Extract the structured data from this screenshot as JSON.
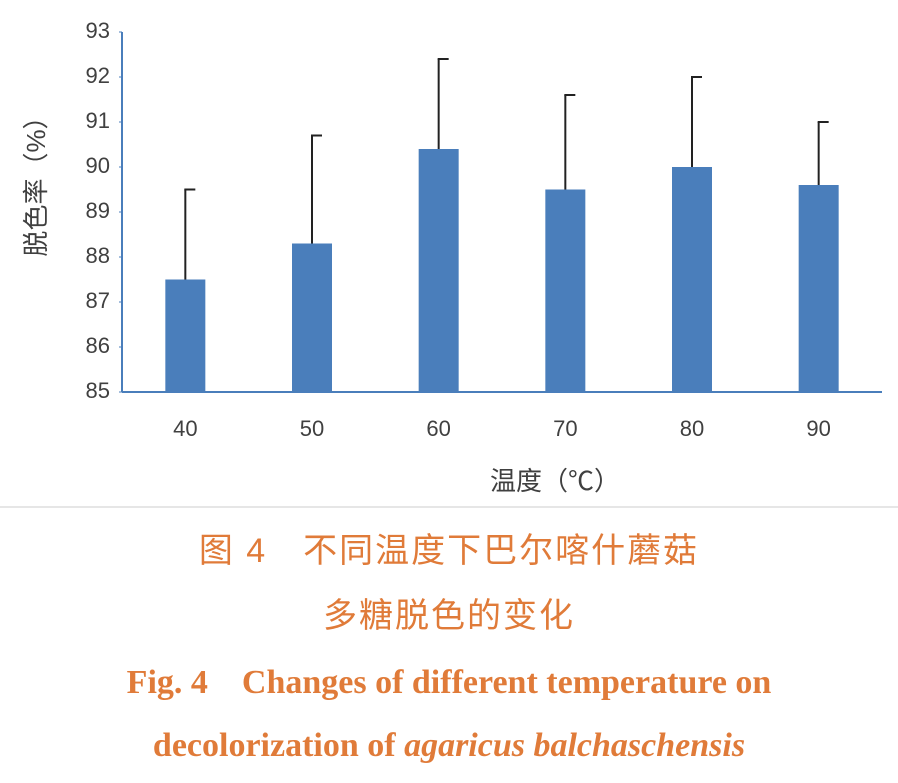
{
  "chart_data": {
    "type": "bar",
    "categories": [
      "40",
      "50",
      "60",
      "70",
      "80",
      "90"
    ],
    "values": [
      87.5,
      88.3,
      90.4,
      89.5,
      90.0,
      89.6
    ],
    "errors": [
      2.0,
      2.4,
      2.0,
      2.1,
      2.0,
      1.4
    ],
    "color": "#4a7ebb",
    "ylim": [
      85,
      93
    ],
    "yticks": [
      85,
      86,
      87,
      88,
      89,
      90,
      91,
      92,
      93
    ],
    "ylabel": "脱色率（%）",
    "xlabel": "温度（℃）",
    "caption_zh": [
      "图 4　不同温度下巴尔喀什蘑菇",
      "多糖脱色的变化"
    ],
    "caption_en": {
      "line1": "Fig. 4　Changes of different temperature on",
      "line2_regular": "decolorization of ",
      "line2_italic": "agaricus balchaschensis"
    }
  }
}
